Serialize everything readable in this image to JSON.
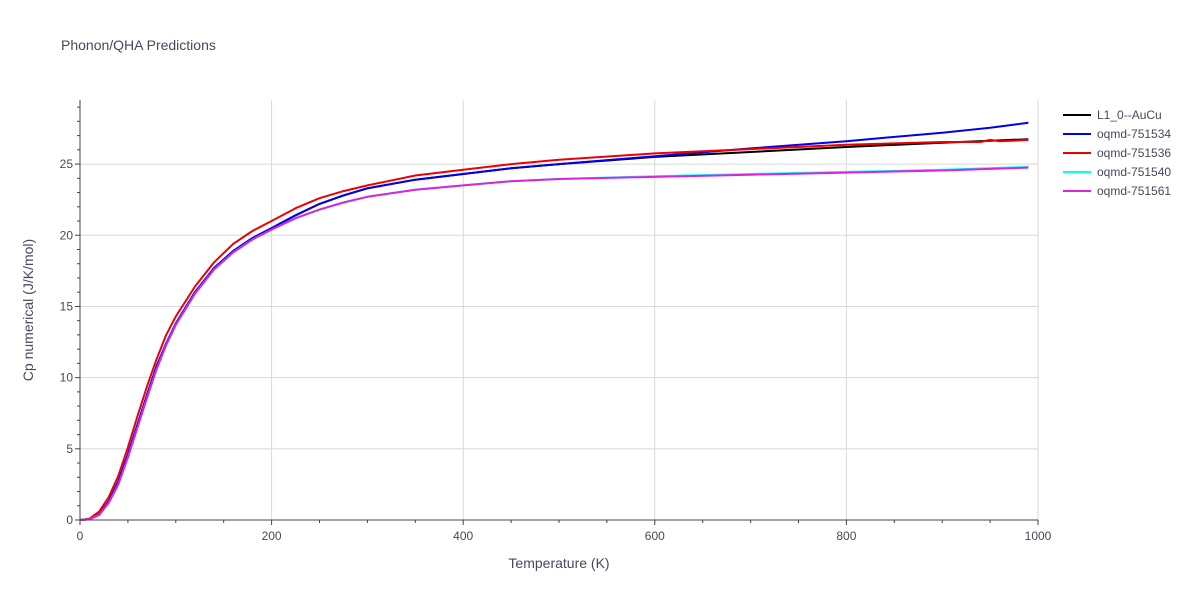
{
  "chart_data": {
    "type": "line",
    "title": "Phonon/QHA Predictions",
    "xlabel": "Temperature (K)",
    "ylabel": "Cp numerical (J/K/mol)",
    "xlim": [
      0,
      1000
    ],
    "ylim": [
      0,
      29.5
    ],
    "xticks": [
      0,
      200,
      400,
      600,
      800,
      1000
    ],
    "yticks": [
      0,
      5,
      10,
      15,
      20,
      25
    ],
    "grid": true,
    "legend_position": "top-right",
    "series": [
      {
        "name": "L1_0--AuCu",
        "color": "#000000",
        "x": [
          0,
          10,
          20,
          30,
          40,
          50,
          60,
          70,
          80,
          90,
          100,
          120,
          140,
          160,
          180,
          200,
          225,
          250,
          275,
          300,
          350,
          400,
          450,
          500,
          600,
          700,
          800,
          900,
          990
        ],
        "y": [
          0,
          0.05,
          0.4,
          1.3,
          2.7,
          4.6,
          6.7,
          8.8,
          10.8,
          12.4,
          13.8,
          16.0,
          17.7,
          18.9,
          19.8,
          20.5,
          21.4,
          22.2,
          22.8,
          23.3,
          23.9,
          24.3,
          24.7,
          25.0,
          25.5,
          25.85,
          26.2,
          26.5,
          26.75
        ]
      },
      {
        "name": "oqmd-751534",
        "color": "#0000ee",
        "x": [
          0,
          10,
          20,
          30,
          40,
          50,
          60,
          70,
          80,
          90,
          100,
          120,
          140,
          160,
          180,
          200,
          225,
          250,
          275,
          300,
          350,
          400,
          450,
          500,
          600,
          700,
          800,
          840,
          900,
          950,
          990
        ],
        "y": [
          0,
          0.05,
          0.4,
          1.3,
          2.7,
          4.6,
          6.7,
          8.8,
          10.8,
          12.4,
          13.8,
          16.0,
          17.7,
          18.9,
          19.8,
          20.5,
          21.4,
          22.2,
          22.8,
          23.3,
          23.9,
          24.3,
          24.7,
          25.0,
          25.55,
          26.1,
          26.6,
          26.85,
          27.2,
          27.55,
          27.9
        ]
      },
      {
        "name": "oqmd-751536",
        "color": "#ee0000",
        "x": [
          0,
          10,
          20,
          30,
          40,
          50,
          60,
          70,
          80,
          90,
          100,
          120,
          140,
          160,
          180,
          200,
          225,
          250,
          275,
          300,
          350,
          400,
          450,
          500,
          600,
          700,
          800,
          900,
          940,
          950,
          960,
          990
        ],
        "y": [
          0,
          0.1,
          0.6,
          1.6,
          3.1,
          5.1,
          7.3,
          9.4,
          11.3,
          13.0,
          14.3,
          16.4,
          18.1,
          19.4,
          20.3,
          21.0,
          21.9,
          22.6,
          23.1,
          23.5,
          24.2,
          24.6,
          25.0,
          25.3,
          25.75,
          26.05,
          26.35,
          26.55,
          26.55,
          26.7,
          26.6,
          26.7
        ]
      },
      {
        "name": "oqmd-751540",
        "color": "#00ffff",
        "x": [
          0,
          10,
          20,
          30,
          40,
          50,
          60,
          70,
          80,
          90,
          100,
          120,
          140,
          160,
          180,
          200,
          225,
          250,
          275,
          300,
          350,
          400,
          450,
          500,
          600,
          700,
          800,
          900,
          990
        ],
        "y": [
          0,
          0.05,
          0.35,
          1.2,
          2.5,
          4.4,
          6.5,
          8.6,
          10.6,
          12.3,
          13.7,
          15.9,
          17.6,
          18.8,
          19.7,
          20.4,
          21.2,
          21.8,
          22.3,
          22.7,
          23.2,
          23.5,
          23.8,
          23.95,
          24.15,
          24.3,
          24.45,
          24.6,
          24.8
        ]
      },
      {
        "name": "oqmd-751561",
        "color": "#dd22dd",
        "x": [
          0,
          10,
          20,
          30,
          40,
          50,
          60,
          70,
          80,
          90,
          100,
          120,
          140,
          160,
          180,
          200,
          225,
          250,
          275,
          300,
          350,
          400,
          450,
          500,
          600,
          700,
          800,
          900,
          990
        ],
        "y": [
          0,
          0.05,
          0.35,
          1.2,
          2.5,
          4.4,
          6.5,
          8.6,
          10.6,
          12.3,
          13.7,
          15.9,
          17.6,
          18.8,
          19.7,
          20.4,
          21.2,
          21.8,
          22.3,
          22.7,
          23.2,
          23.5,
          23.8,
          23.95,
          24.1,
          24.25,
          24.4,
          24.55,
          24.75
        ]
      }
    ]
  }
}
